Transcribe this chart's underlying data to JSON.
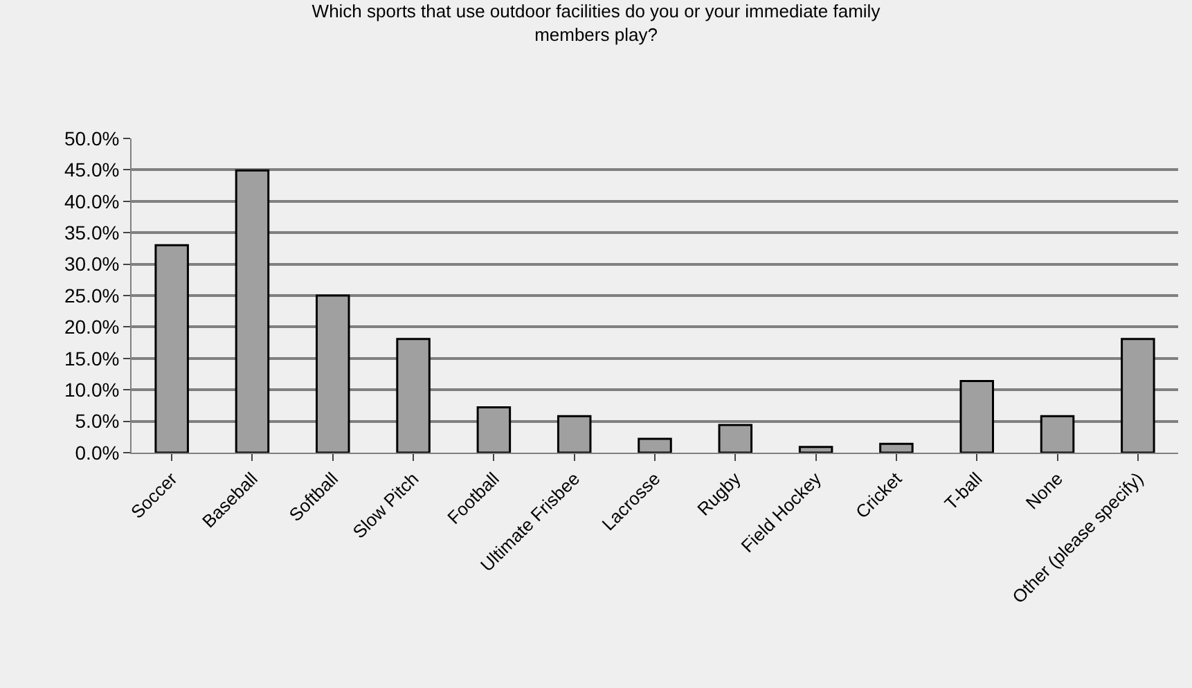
{
  "chart_data": {
    "type": "bar",
    "title": "Which sports that use outdoor facilities do you or your immediate family\nmembers play?",
    "categories": [
      "Soccer",
      "Baseball",
      "Softball",
      "Slow Pitch",
      "Football",
      "Ultimate Frisbee",
      "Lacrosse",
      "Rugby",
      "Field Hockey",
      "Cricket",
      "T-ball",
      "None",
      "Other (please specify)"
    ],
    "values": [
      33.0,
      44.9,
      25.0,
      18.1,
      7.2,
      5.8,
      2.2,
      4.4,
      0.9,
      1.4,
      11.4,
      5.8,
      18.1
    ],
    "color": "#a0a0a0",
    "ylim": [
      0,
      50
    ],
    "yticks": [
      {
        "value": 0,
        "label": "0.0%"
      },
      {
        "value": 5,
        "label": "5.0%"
      },
      {
        "value": 10,
        "label": "10.0%"
      },
      {
        "value": 15,
        "label": "15.0%"
      },
      {
        "value": 20,
        "label": "20.0%"
      },
      {
        "value": 25,
        "label": "25.0%"
      },
      {
        "value": 30,
        "label": "30.0%"
      },
      {
        "value": 35,
        "label": "35.0%"
      },
      {
        "value": 40,
        "label": "40.0%"
      },
      {
        "value": 45,
        "label": "45.0%"
      },
      {
        "value": 50,
        "label": "50.0%"
      }
    ],
    "grid": "y",
    "legend": false
  }
}
